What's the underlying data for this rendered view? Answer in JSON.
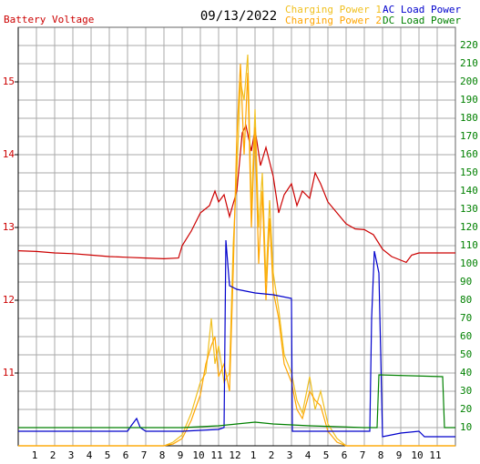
{
  "chart_data": {
    "type": "line",
    "title": "09/13/2022",
    "xlim": [
      0,
      24
    ],
    "xticks": [
      1,
      2,
      3,
      4,
      5,
      6,
      7,
      8,
      9,
      10,
      11,
      12,
      {
        "value": 13,
        "label": "1"
      },
      {
        "value": 14,
        "label": "2"
      },
      {
        "value": 15,
        "label": "3"
      },
      {
        "value": 16,
        "label": "4"
      },
      {
        "value": 17,
        "label": "5"
      },
      {
        "value": 18,
        "label": "6"
      },
      {
        "value": 19,
        "label": "7"
      },
      {
        "value": 20,
        "label": "8"
      },
      {
        "value": 21,
        "label": "9"
      },
      {
        "value": 22,
        "label": "10"
      },
      {
        "value": 23,
        "label": "11"
      }
    ],
    "ylim": [
      10,
      15.75
    ],
    "yticks": [
      11,
      12,
      13,
      14,
      15
    ],
    "y2lim": [
      0,
      230
    ],
    "y2ticks": [
      10,
      20,
      30,
      40,
      50,
      60,
      70,
      80,
      90,
      100,
      110,
      120,
      130,
      140,
      150,
      160,
      170,
      180,
      190,
      200,
      210,
      220
    ],
    "grid": true,
    "series": [
      {
        "name": "Battery Voltage",
        "color": "#cc0000",
        "x": [
          0,
          1,
          2,
          3,
          4,
          5,
          6,
          7,
          8,
          8.8,
          9,
          9.5,
          10,
          10.5,
          10.8,
          11,
          11.3,
          11.6,
          12,
          12.3,
          12.5,
          12.8,
          13,
          13.3,
          13.6,
          14,
          14.3,
          14.6,
          15,
          15.3,
          15.6,
          16,
          16.3,
          16.6,
          17,
          17.5,
          18,
          18.5,
          19,
          19.5,
          20,
          20.5,
          21,
          21.3,
          21.6,
          22,
          23,
          24
        ],
        "values": [
          12.68,
          12.67,
          12.65,
          12.64,
          12.62,
          12.6,
          12.59,
          12.58,
          12.57,
          12.58,
          12.75,
          12.95,
          13.2,
          13.3,
          13.5,
          13.35,
          13.45,
          13.15,
          13.5,
          14.3,
          14.4,
          14.05,
          14.35,
          13.85,
          14.1,
          13.7,
          13.2,
          13.45,
          13.6,
          13.3,
          13.5,
          13.4,
          13.75,
          13.6,
          13.35,
          13.2,
          13.05,
          12.98,
          12.97,
          12.9,
          12.7,
          12.6,
          12.55,
          12.52,
          12.62,
          12.65,
          12.65,
          12.65
        ]
      },
      {
        "name": "Charging Power 1",
        "color": "#f0c020",
        "axis": "y2",
        "x": [
          0,
          8,
          8.5,
          9,
          9.5,
          10,
          10.3,
          10.6,
          10.8,
          11,
          11.3,
          11.6,
          11.8,
          12,
          12.2,
          12.4,
          12.6,
          12.8,
          13,
          13.2,
          13.4,
          13.6,
          13.8,
          14,
          14.3,
          14.6,
          15,
          15.3,
          15.6,
          16,
          16.3,
          16.6,
          17,
          17.5,
          18,
          24
        ],
        "values": [
          0,
          0,
          2,
          6,
          18,
          35,
          40,
          70,
          45,
          55,
          35,
          40,
          110,
          150,
          200,
          190,
          215,
          130,
          185,
          120,
          150,
          90,
          135,
          95,
          75,
          50,
          40,
          25,
          18,
          38,
          20,
          30,
          12,
          4,
          0,
          0
        ]
      },
      {
        "name": "Charging Power 2",
        "color": "#ffa500",
        "axis": "y2",
        "x": [
          0,
          8,
          8.5,
          9,
          9.5,
          10,
          10.3,
          10.6,
          10.8,
          11,
          11.3,
          11.6,
          11.8,
          12,
          12.2,
          12.4,
          12.6,
          12.8,
          13,
          13.2,
          13.4,
          13.6,
          13.8,
          14,
          14.3,
          14.6,
          15,
          15.3,
          15.6,
          16,
          16.3,
          16.6,
          17,
          17.5,
          18,
          24
        ],
        "values": [
          0,
          0,
          1,
          4,
          14,
          28,
          45,
          55,
          60,
          38,
          45,
          30,
          95,
          170,
          210,
          160,
          205,
          120,
          175,
          100,
          140,
          80,
          125,
          85,
          70,
          45,
          35,
          20,
          15,
          30,
          25,
          22,
          8,
          2,
          0,
          0
        ]
      },
      {
        "name": "AC Load Power",
        "color": "#0000cc",
        "axis": "y2",
        "x": [
          0,
          3,
          6,
          6.2,
          6.5,
          6.7,
          7,
          9,
          11,
          11.3,
          11.4,
          11.6,
          12,
          13,
          14,
          15,
          15.05,
          17,
          19,
          19.3,
          19.4,
          19.55,
          19.8,
          20,
          21,
          22,
          22.3,
          24
        ],
        "values": [
          8,
          8,
          8,
          11,
          15,
          10,
          8,
          8,
          9,
          10,
          113,
          88,
          86,
          84,
          83,
          81,
          8,
          8,
          8,
          8,
          70,
          107,
          95,
          5,
          7,
          8,
          5,
          5
        ]
      },
      {
        "name": "DC Load Power",
        "color": "#008000",
        "axis": "y2",
        "x": [
          0,
          6,
          9,
          11,
          12,
          13,
          14,
          16,
          19,
          19.7,
          19.8,
          23.3,
          23.4,
          24
        ],
        "values": [
          10,
          10,
          10,
          11,
          12,
          13,
          12,
          11,
          10,
          10,
          39,
          38,
          10,
          10
        ]
      }
    ]
  }
}
